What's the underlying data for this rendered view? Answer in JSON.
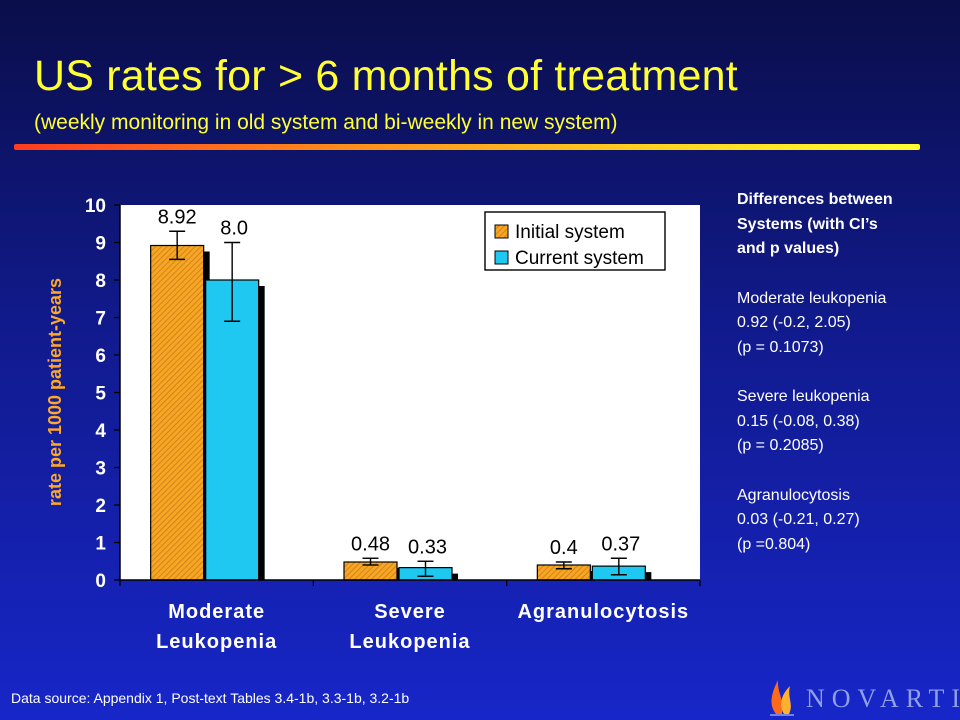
{
  "header": {
    "title": "US rates for > 6 months of treatment",
    "subtitle": "(weekly monitoring in old system and bi-weekly in new system)"
  },
  "notes": {
    "heading": [
      "Differences between",
      "Systems (with CI’s",
      "and p values)"
    ],
    "blocks": [
      [
        "Moderate leukopenia",
        "0.92 (-0.2, 2.05)",
        "(p = 0.1073)"
      ],
      [
        "Severe leukopenia",
        "0.15 (-0.08, 0.38)",
        "(p = 0.2085)"
      ],
      [
        "Agranulocytosis",
        "0.03 (-0.21, 0.27)",
        "(p =0.804)"
      ]
    ]
  },
  "footer": {
    "source": "Data source: Appendix 1, Post-text Tables 3.4-1b, 3.3-1b, 3.2-1b",
    "logo_text": "NOVARTIS"
  },
  "colors": {
    "initial": "#f5a623",
    "current": "#1ec8f0",
    "accent": "#ffff33"
  },
  "chart_data": {
    "type": "bar",
    "title": "",
    "xlabel": "",
    "ylabel": "rate per 1000 patient-years",
    "ylim": [
      0,
      10
    ],
    "yticks": [
      0,
      1,
      2,
      3,
      4,
      5,
      6,
      7,
      8,
      9,
      10
    ],
    "grid": false,
    "legend_position": "top-right",
    "categories": [
      [
        "Moderate",
        "Leukopenia"
      ],
      [
        "Severe",
        "Leukopenia"
      ],
      [
        "Agranulocytosis"
      ]
    ],
    "series": [
      {
        "name": "Initial system",
        "values": [
          8.92,
          0.48,
          0.4
        ],
        "labels": [
          "8.92",
          "0.48",
          "0.4"
        ],
        "ci_low": [
          8.55,
          0.4,
          0.3
        ],
        "ci_high": [
          9.3,
          0.58,
          0.48
        ]
      },
      {
        "name": "Current system",
        "values": [
          8.0,
          0.33,
          0.37
        ],
        "labels": [
          "8.0",
          "0.33",
          "0.37"
        ],
        "ci_low": [
          6.9,
          0.1,
          0.14
        ],
        "ci_high": [
          9.0,
          0.5,
          0.58
        ]
      }
    ]
  }
}
